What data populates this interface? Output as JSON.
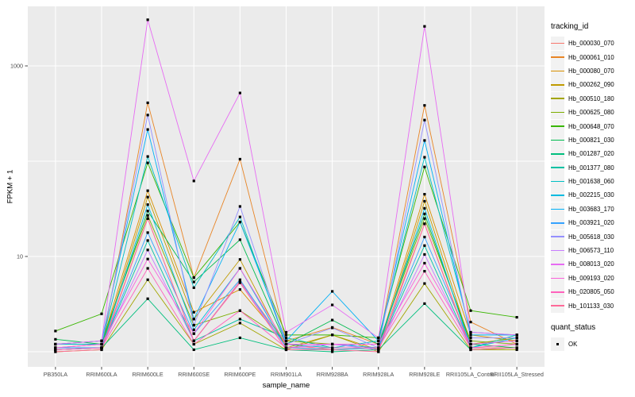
{
  "figure": {
    "background": "#FFFFFF",
    "panel_bg": "#EBEBEB",
    "grid_color": "#FFFFFF",
    "tick_color": "#333333",
    "axis_text_color": "#4D4D4D",
    "point_color": "#000000"
  },
  "axes": {
    "x_title": "sample_name",
    "y_title": "FPKM + 1",
    "y_tick_labels": [
      "1000",
      "10"
    ],
    "y_tick_values": [
      1000,
      10
    ]
  },
  "legend": {
    "tracking_title": "tracking_id",
    "quant_title": "quant_status",
    "quant_items": [
      {
        "label": "OK"
      }
    ]
  },
  "chart_data": {
    "type": "line",
    "title": "",
    "xlabel": "sample_name",
    "ylabel": "FPKM + 1",
    "y_scale": "log10",
    "y_ticks_labeled": [
      10,
      1000
    ],
    "grid_lines_y": [
      1,
      10,
      100,
      1000
    ],
    "ylim": [
      0.69,
      4200
    ],
    "legend_position": "right",
    "point_shape": "filled-square",
    "quant_status": "OK",
    "categories": [
      "PB350LA",
      "RRIM600LA",
      "RRIM600LE",
      "RRIM600SE",
      "RRIM600PE",
      "RRIM901LA",
      "RRIM928BA",
      "RRIM928LA",
      "RRIM928LE",
      "RRII105LA_Control",
      "RRII105LA_Stressed"
    ],
    "series": [
      {
        "name": "Hb_000030_070",
        "color": "#F8766D",
        "values": [
          1.1,
          1.1,
          25,
          1.3,
          5.5,
          1.2,
          1.05,
          1.1,
          22,
          1.1,
          1.1
        ]
      },
      {
        "name": "Hb_000061_010",
        "color": "#E88526",
        "values": [
          1.05,
          1.1,
          410,
          6.0,
          105,
          1.3,
          1.8,
          1.2,
          385,
          2.05,
          1.2
        ]
      },
      {
        "name": "Hb_000080_070",
        "color": "#D89000",
        "values": [
          1.1,
          1.2,
          49,
          2.6,
          4.5,
          1.2,
          1.2,
          1.1,
          45,
          1.5,
          1.3
        ]
      },
      {
        "name": "Hb_000262_090",
        "color": "#C09B00",
        "values": [
          1.05,
          1.1,
          42,
          2.2,
          9.3,
          1.1,
          1.5,
          1.05,
          38,
          1.2,
          1.4
        ]
      },
      {
        "name": "Hb_000510_180",
        "color": "#A3A500",
        "values": [
          1.0,
          1.05,
          5.7,
          1.2,
          2.0,
          1.05,
          1.5,
          1.0,
          5.2,
          1.05,
          1.05
        ]
      },
      {
        "name": "Hb_000625_080",
        "color": "#7CAE00",
        "values": [
          1.2,
          1.3,
          27,
          1.9,
          2.7,
          1.3,
          1.2,
          1.2,
          25,
          1.3,
          1.2
        ]
      },
      {
        "name": "Hb_000648_070",
        "color": "#39B600",
        "values": [
          1.65,
          2.5,
          96,
          6.0,
          23,
          1.5,
          1.5,
          1.4,
          87,
          2.7,
          2.3
        ]
      },
      {
        "name": "Hb_000821_030",
        "color": "#00BB4E",
        "values": [
          1.35,
          1.2,
          30,
          5.4,
          15,
          1.2,
          2.15,
          1.2,
          28,
          1.2,
          1.1
        ]
      },
      {
        "name": "Hb_001287_020",
        "color": "#00BF7D",
        "values": [
          1.05,
          1.1,
          3.6,
          1.05,
          1.4,
          1.05,
          1.0,
          1.05,
          3.2,
          1.05,
          1.1
        ]
      },
      {
        "name": "Hb_001377_080",
        "color": "#00C1A3",
        "values": [
          1.1,
          1.1,
          14.7,
          1.3,
          2.2,
          1.4,
          1.1,
          1.1,
          13,
          1.1,
          1.5
        ]
      },
      {
        "name": "Hb_001638_060",
        "color": "#00BFC4",
        "values": [
          1.2,
          1.2,
          112,
          4.7,
          26,
          1.2,
          1.1,
          1.3,
          110,
          1.6,
          1.5
        ]
      },
      {
        "name": "Hb_002215_030",
        "color": "#00BAE0",
        "values": [
          1.1,
          1.1,
          35,
          1.7,
          7.5,
          1.1,
          1.05,
          1.1,
          32,
          1.1,
          1.4
        ]
      },
      {
        "name": "Hb_003683_170",
        "color": "#00B0F6",
        "values": [
          1.2,
          1.3,
          215,
          2.2,
          23,
          1.3,
          4.3,
          1.3,
          165,
          1.5,
          1.5
        ]
      },
      {
        "name": "Hb_003921_020",
        "color": "#35A2FF",
        "values": [
          1.1,
          1.1,
          17.8,
          1.55,
          5.7,
          1.1,
          1.2,
          1.1,
          16,
          1.2,
          1.3
        ]
      },
      {
        "name": "Hb_005618_030",
        "color": "#9590FF",
        "values": [
          1.1,
          1.2,
          305,
          1.9,
          33.5,
          1.2,
          1.78,
          1.1,
          270,
          1.4,
          1.4
        ]
      },
      {
        "name": "Hb_006573_110",
        "color": "#C77CFF",
        "values": [
          1.05,
          1.1,
          11.7,
          1.3,
          5.4,
          1.1,
          1.2,
          1.05,
          10.5,
          1.1,
          1.2
        ]
      },
      {
        "name": "Hb_008013_020",
        "color": "#E76BF3",
        "values": [
          1.2,
          1.3,
          3050,
          62,
          520,
          1.6,
          3.1,
          1.4,
          2600,
          1.6,
          1.5
        ]
      },
      {
        "name": "Hb_009193_020",
        "color": "#FA62DB",
        "values": [
          1.1,
          1.2,
          9.4,
          1.55,
          7.5,
          1.2,
          1.2,
          1.2,
          8.5,
          1.2,
          1.3
        ]
      },
      {
        "name": "Hb_020805_050",
        "color": "#FF62BC",
        "values": [
          1.05,
          1.1,
          7.5,
          1.2,
          2.7,
          1.1,
          1.1,
          1.1,
          7.0,
          1.1,
          1.2
        ]
      },
      {
        "name": "Hb_101133_030",
        "color": "#FF6A98",
        "values": [
          1.0,
          1.05,
          25,
          1.3,
          5.3,
          1.05,
          1.05,
          1.0,
          22,
          1.05,
          1.1
        ]
      }
    ]
  }
}
